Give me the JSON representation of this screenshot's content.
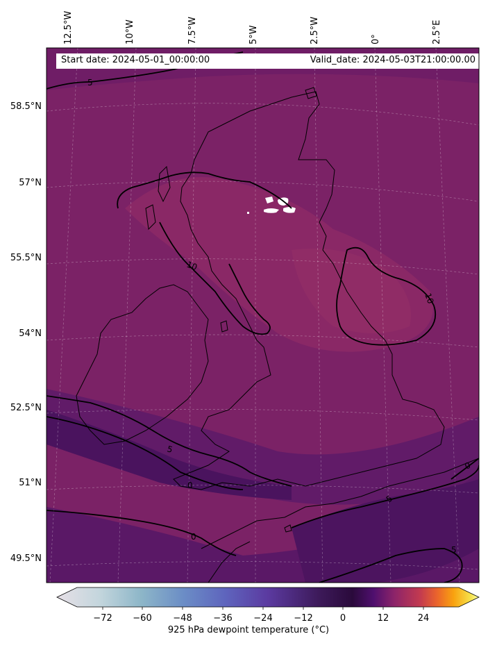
{
  "header": {
    "start_date": "Start date: 2024-05-01_00:00:00",
    "valid_date": "Valid_date: 2024-05-03T21:00:00.00"
  },
  "longitude_labels": [
    "12.5°W",
    "10°W",
    "7.5°W",
    "5°W",
    "2.5°W",
    "0°",
    "2.5°E"
  ],
  "latitude_labels": [
    "58.5°N",
    "57°N",
    "55.5°N",
    "54°N",
    "52.5°N",
    "51°N",
    "49.5°N"
  ],
  "contour_labels": [
    "5",
    "10",
    "10",
    "5",
    "0",
    "0",
    "0",
    "5",
    "5"
  ],
  "colorbar": {
    "title": "925 hPa dewpoint temperature (°C)",
    "ticks": [
      "−72",
      "−60",
      "−48",
      "−36",
      "−24",
      "−12",
      "0",
      "12",
      "24"
    ],
    "tick_values": [
      -72,
      -60,
      -48,
      -36,
      -24,
      -12,
      0,
      12,
      24
    ],
    "range": [
      -84,
      36
    ],
    "colormap": [
      "#e6dfe6",
      "#c4d6dd",
      "#8db6c8",
      "#6b8dc6",
      "#5e64bd",
      "#5b3aa0",
      "#3d1a5a",
      "#2a0a3b",
      "#4f0f6e",
      "#8d2469",
      "#c23a50",
      "#ea632c",
      "#f9a20f",
      "#f5e14a",
      "#fcfea4"
    ]
  },
  "field_colors": {
    "land_sea_main": "#7d2267",
    "warm_core": "#8d2a66",
    "cold_band": "#48125d",
    "mid_band": "#5f1a66",
    "missing": "#ffffff"
  }
}
